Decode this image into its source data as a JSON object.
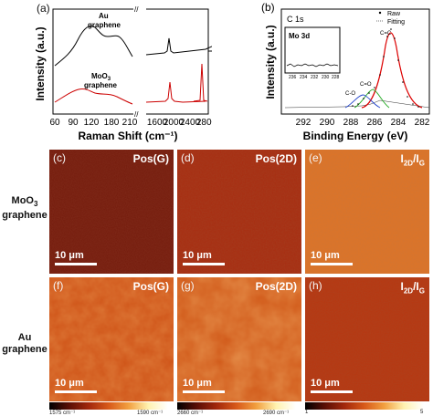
{
  "panels": {
    "a": {
      "label": "(a)",
      "xlabel": "Raman Shift (cm⁻¹)",
      "ylabel": "Intensity (a.u.)",
      "x_ticks_left": [
        "60",
        "90",
        "120",
        "180",
        "210"
      ],
      "x_ticks_right": [
        "1600",
        "2000",
        "2400",
        "2800"
      ],
      "break_mark": "//",
      "series": [
        {
          "name": "Au\ngraphene",
          "label_line1": "Au",
          "label_line2": "graphene",
          "color": "#000000"
        },
        {
          "name": "MoO3 graphene",
          "label_line1": "MoO",
          "label_sub": "3",
          "label_line2": "graphene",
          "color": "#cc0000"
        }
      ]
    },
    "b": {
      "label": "(b)",
      "xlabel": "Binding Energy (eV)",
      "ylabel": "Intensity (a.u.)",
      "x_ticks": [
        "292",
        "290",
        "288",
        "286",
        "284",
        "282"
      ],
      "title": "C 1s",
      "legend_raw": "Raw",
      "legend_fit": "Fitting",
      "peaks": [
        "C=C",
        "C=O",
        "C-O"
      ],
      "inset_title": "Mo 3d",
      "inset_ticks": [
        "236",
        "234",
        "232",
        "230",
        "228"
      ]
    },
    "maps": {
      "row1_line1": "MoO",
      "row1_sub": "3",
      "row1_line2": "graphene",
      "row2_line1": "Au",
      "row2_line2": "graphene",
      "scale": "10 μm",
      "c": {
        "label": "(c)",
        "title": "Pos(G)"
      },
      "d": {
        "label": "(d)",
        "title": "Pos(2D)"
      },
      "e": {
        "label": "(e)",
        "title_main": "I",
        "title_sub1": "2D",
        "title_sep": "/I",
        "title_sub2": "G"
      },
      "f": {
        "label": "(f)",
        "title": "Pos(G)"
      },
      "g": {
        "label": "(g)",
        "title": "Pos(2D)"
      },
      "h": {
        "label": "(h)",
        "title_main": "I",
        "title_sub1": "2D",
        "title_sep": "/I",
        "title_sub2": "G"
      }
    },
    "colorbars": {
      "g": {
        "min": "1575 cm⁻¹",
        "max": "1590 cm⁻¹"
      },
      "twod": {
        "min": "2660 cm⁻¹",
        "max": "2690 cm⁻¹"
      },
      "ratio": {
        "min": "1",
        "max": "5"
      }
    }
  },
  "colors": {
    "map_dark": "#7a1c0c",
    "map_mid": "#b8320e",
    "map_orange": "#d95a18",
    "map_light": "#e07a28"
  }
}
